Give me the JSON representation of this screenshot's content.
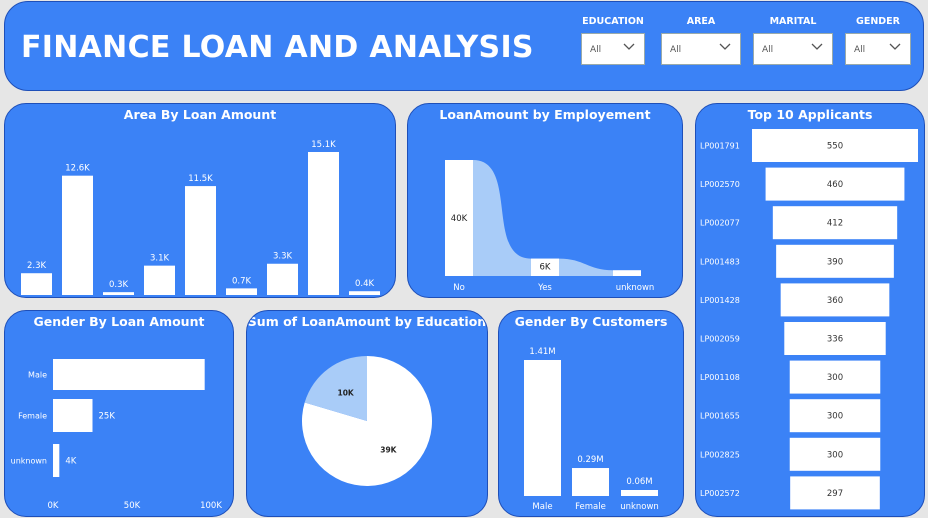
{
  "header": {
    "title": "FINANCE LOAN AND ANALYSIS",
    "slicers": [
      {
        "label": "EDUCATION",
        "value": "All"
      },
      {
        "label": "AREA",
        "value": "All"
      },
      {
        "label": "MARITAL",
        "value": "All"
      },
      {
        "label": "GENDER",
        "value": "All"
      }
    ]
  },
  "panels": {
    "area": "Area By Loan Amount",
    "employment": "LoanAmount by Employement",
    "top10": "Top 10 Applicants",
    "gender_amount": "Gender By Loan Amount",
    "education": "Sum of LoanAmount by Education",
    "gender_customers": "Gender By Customers"
  },
  "colors": {
    "panel": "#3b82f6",
    "bar": "#ffffff",
    "light": "#a9ccf8"
  },
  "chart_data": [
    {
      "id": "area",
      "type": "bar",
      "values": [
        2.3,
        12.6,
        0.3,
        3.1,
        11.5,
        0.7,
        3.3,
        15.1,
        0.4
      ],
      "labels": [
        "2.3K",
        "12.6K",
        "0.3K",
        "3.1K",
        "11.5K",
        "0.7K",
        "3.3K",
        "15.1K",
        "0.4K"
      ]
    },
    {
      "id": "employment",
      "type": "area",
      "categories": [
        "No",
        "Yes",
        "unknown"
      ],
      "values": [
        40,
        6,
        2
      ],
      "labels": [
        "40K",
        "6K",
        ""
      ]
    },
    {
      "id": "top10",
      "type": "bar",
      "categories": [
        "LP001791",
        "LP002570",
        "LP002077",
        "LP001483",
        "LP001428",
        "LP002059",
        "LP001108",
        "LP001655",
        "LP002825",
        "LP002572"
      ],
      "values": [
        550,
        460,
        412,
        390,
        360,
        336,
        300,
        300,
        300,
        297
      ],
      "labels": [
        "550",
        "460",
        "412",
        "390",
        "360",
        "336",
        "300",
        "300",
        "300",
        "297"
      ]
    },
    {
      "id": "gender_amount",
      "type": "bar",
      "categories": [
        "Male",
        "Female",
        "unknown"
      ],
      "values": [
        96,
        25,
        4
      ],
      "labels": [
        "",
        "25K",
        "4K"
      ],
      "xticks": [
        "0K",
        "50K",
        "100K"
      ],
      "xlim": [
        0,
        100
      ]
    },
    {
      "id": "education",
      "type": "pie",
      "values": [
        39,
        10
      ],
      "labels": [
        "39K",
        "10K"
      ]
    },
    {
      "id": "gender_customers",
      "type": "bar",
      "categories": [
        "Male",
        "Female",
        "unknown"
      ],
      "values": [
        1.41,
        0.29,
        0.06
      ],
      "labels": [
        "1.41M",
        "0.29M",
        "0.06M"
      ]
    }
  ]
}
